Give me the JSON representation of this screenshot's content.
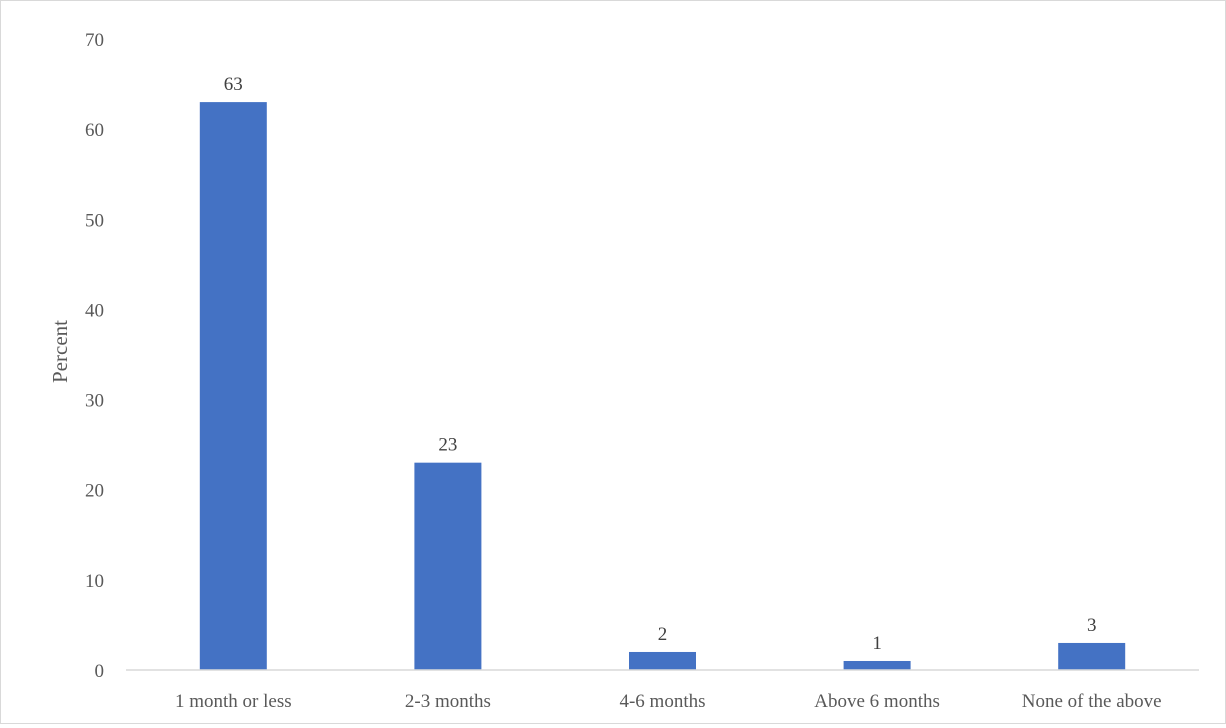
{
  "chart_data": {
    "type": "bar",
    "categories": [
      "1 month or less",
      "2-3 months",
      "4-6 months",
      "Above 6 months",
      "None of the above"
    ],
    "values": [
      63,
      23,
      2,
      1,
      3
    ],
    "data_labels": [
      "63",
      "23",
      "2",
      "1",
      "3"
    ],
    "title": "",
    "xlabel": "",
    "ylabel": "Percent",
    "ylim": [
      0,
      70
    ],
    "yticks": [
      0,
      10,
      20,
      30,
      40,
      50,
      60,
      70
    ],
    "ytick_labels": [
      "0",
      "10",
      "20",
      "30",
      "40",
      "50",
      "60",
      "70"
    ],
    "grid": false,
    "legend": "none",
    "bar_color": "#4472C4"
  }
}
